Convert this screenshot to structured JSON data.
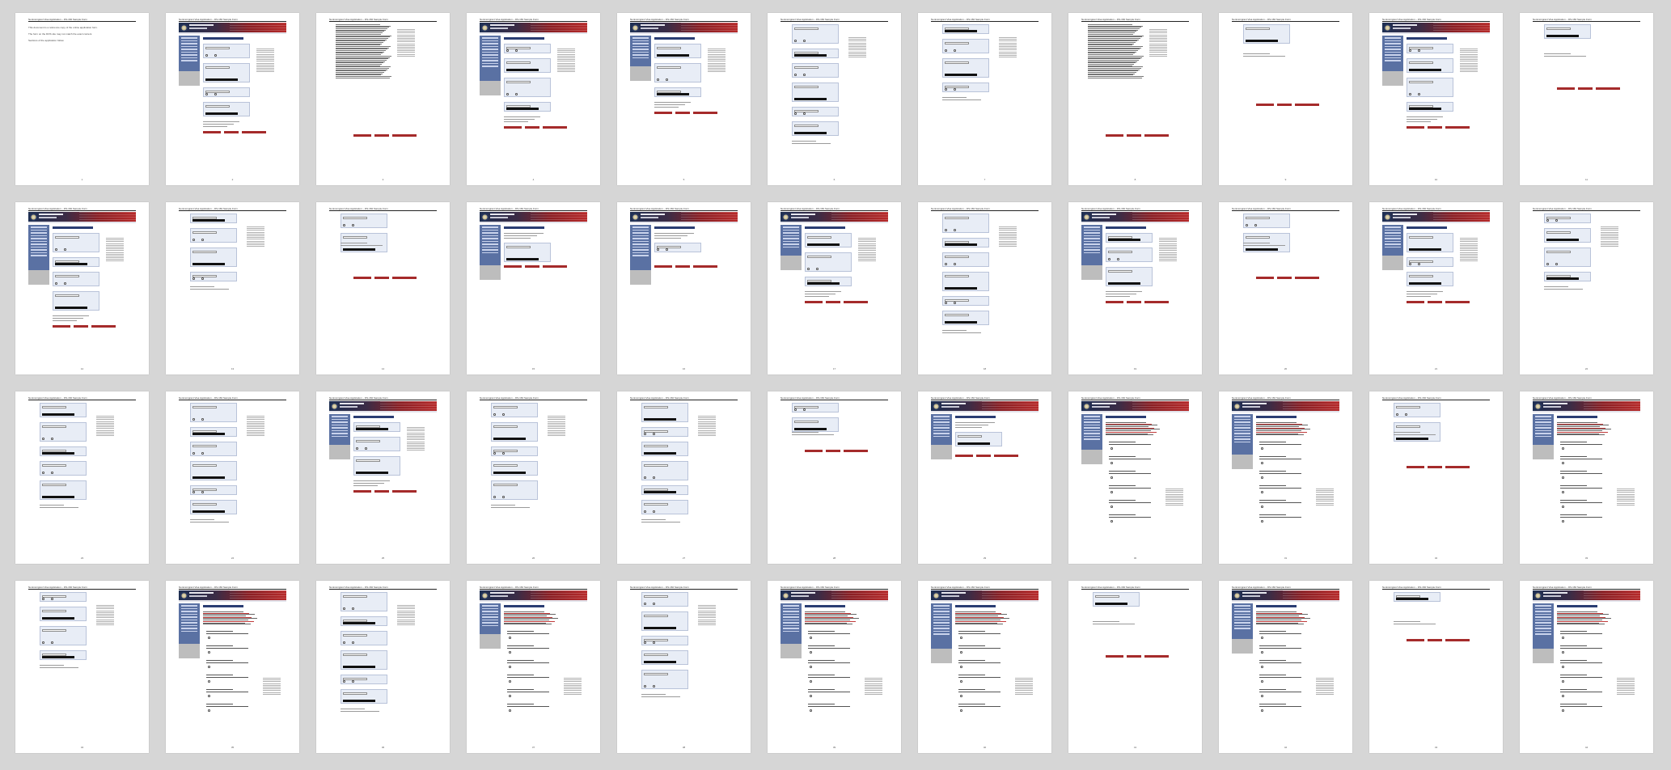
{
  "document": {
    "header_text": "Nonimmigrant Visa Application – DS-160 Sample Form",
    "first_page_lines": [
      "This document is a reference copy of the online application form.",
      "The form on the DOS site may not match the exact content.",
      "Sections of the application follow."
    ]
  },
  "pages": [
    {
      "number": "1",
      "layout": "cover"
    },
    {
      "number": "2",
      "layout": "banner-form"
    },
    {
      "number": "3",
      "layout": "continuation-text"
    },
    {
      "number": "4",
      "layout": "banner-form"
    },
    {
      "number": "5",
      "layout": "banner-form"
    },
    {
      "number": "6",
      "layout": "continuation-form"
    },
    {
      "number": "7",
      "layout": "continuation-form"
    },
    {
      "number": "8",
      "layout": "continuation-text"
    },
    {
      "number": "9",
      "layout": "continuation-short"
    },
    {
      "number": "10",
      "layout": "banner-form"
    },
    {
      "number": "11",
      "layout": "continuation-short"
    },
    {
      "number": "12",
      "layout": "banner-form"
    },
    {
      "number": "13",
      "layout": "continuation-form"
    },
    {
      "number": "14",
      "layout": "continuation-short"
    },
    {
      "number": "15",
      "layout": "banner-short"
    },
    {
      "number": "16",
      "layout": "banner-short"
    },
    {
      "number": "17",
      "layout": "banner-form"
    },
    {
      "number": "18",
      "layout": "continuation-form"
    },
    {
      "number": "19",
      "layout": "banner-form"
    },
    {
      "number": "20",
      "layout": "continuation-short"
    },
    {
      "number": "21",
      "layout": "banner-form"
    },
    {
      "number": "22",
      "layout": "continuation-form"
    },
    {
      "number": "23",
      "layout": "continuation-form"
    },
    {
      "number": "24",
      "layout": "continuation-form"
    },
    {
      "number": "25",
      "layout": "banner-form"
    },
    {
      "number": "26",
      "layout": "continuation-form"
    },
    {
      "number": "27",
      "layout": "continuation-form"
    },
    {
      "number": "28",
      "layout": "continuation-short"
    },
    {
      "number": "29",
      "layout": "banner-short"
    },
    {
      "number": "30",
      "layout": "banner-red"
    },
    {
      "number": "31",
      "layout": "banner-red"
    },
    {
      "number": "32",
      "layout": "continuation-short"
    },
    {
      "number": "33",
      "layout": "banner-red"
    },
    {
      "number": "34",
      "layout": "continuation-form"
    },
    {
      "number": "35",
      "layout": "banner-red"
    },
    {
      "number": "36",
      "layout": "continuation-form"
    },
    {
      "number": "37",
      "layout": "banner-red"
    },
    {
      "number": "38",
      "layout": "continuation-form"
    },
    {
      "number": "39",
      "layout": "banner-red"
    },
    {
      "number": "40",
      "layout": "banner-red"
    },
    {
      "number": "41",
      "layout": "continuation-short"
    },
    {
      "number": "42",
      "layout": "banner-red"
    },
    {
      "number": "43",
      "layout": "continuation-short"
    },
    {
      "number": "44",
      "layout": "banner-red"
    }
  ],
  "colors": {
    "background": "#d6d6d6",
    "banner_blue": "#1e2f52",
    "banner_red": "#b62a2a",
    "sidebar": "#5a71a3",
    "button_red": "#a52b2b"
  }
}
